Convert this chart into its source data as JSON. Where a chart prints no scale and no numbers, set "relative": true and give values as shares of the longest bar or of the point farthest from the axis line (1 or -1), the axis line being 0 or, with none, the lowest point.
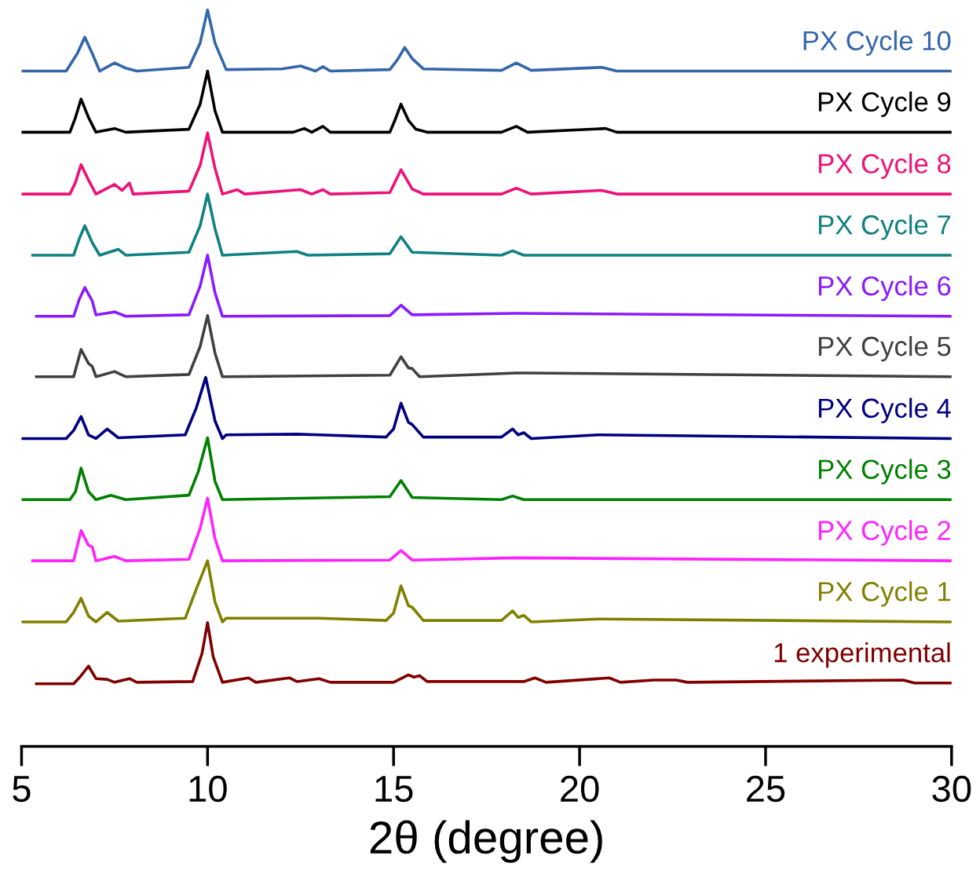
{
  "chart_data": {
    "type": "line",
    "relative": true,
    "xlabel": "2θ (degree)",
    "xlim": [
      5,
      30
    ],
    "xticks": [
      5,
      10,
      15,
      20,
      25,
      30
    ],
    "tick_labels": "x",
    "grid": false,
    "legend": false,
    "line_style": "solid",
    "marker": "none",
    "series": [
      {
        "name": "PX Cycle 10",
        "color": "#3366aa",
        "x": [
          5.0,
          6.2,
          6.5,
          6.7,
          6.9,
          7.1,
          7.5,
          7.8,
          8.1,
          9.5,
          9.8,
          10.0,
          10.2,
          10.5,
          12.0,
          12.5,
          12.9,
          13.1,
          13.3,
          14.9,
          15.1,
          15.3,
          15.5,
          15.8,
          17.9,
          18.3,
          18.7,
          20.6,
          21.0,
          30.0
        ],
        "values": [
          0.917,
          0.917,
          0.941,
          0.963,
          0.941,
          0.917,
          0.928,
          0.921,
          0.917,
          0.922,
          0.955,
          1.0,
          0.955,
          0.919,
          0.92,
          0.924,
          0.917,
          0.923,
          0.917,
          0.919,
          0.932,
          0.949,
          0.934,
          0.92,
          0.918,
          0.928,
          0.918,
          0.922,
          0.917,
          0.917
        ]
      },
      {
        "name": "PX Cycle 9",
        "color": "#000000",
        "x": [
          5.0,
          6.3,
          6.45,
          6.6,
          6.8,
          7.0,
          7.5,
          7.8,
          9.5,
          9.8,
          10.0,
          10.2,
          10.4,
          12.3,
          12.6,
          12.8,
          13.1,
          13.3,
          14.9,
          15.05,
          15.2,
          15.4,
          15.6,
          15.9,
          17.9,
          18.3,
          18.6,
          20.7,
          21.0,
          30.0
        ],
        "values": [
          0.834,
          0.834,
          0.854,
          0.879,
          0.854,
          0.834,
          0.839,
          0.834,
          0.838,
          0.872,
          0.917,
          0.863,
          0.834,
          0.834,
          0.839,
          0.834,
          0.842,
          0.834,
          0.834,
          0.852,
          0.872,
          0.85,
          0.838,
          0.834,
          0.834,
          0.842,
          0.834,
          0.839,
          0.834,
          0.834
        ]
      },
      {
        "name": "PX Cycle 8",
        "color": "#ee1177",
        "x": [
          5.0,
          6.3,
          6.45,
          6.6,
          6.8,
          7.0,
          7.5,
          7.7,
          7.9,
          8.0,
          9.5,
          9.8,
          10.0,
          10.2,
          10.4,
          10.8,
          11.0,
          12.5,
          12.8,
          13.1,
          13.3,
          14.9,
          15.2,
          15.5,
          15.8,
          17.9,
          18.3,
          18.7,
          20.6,
          21.0,
          30.0
        ],
        "values": [
          0.75,
          0.75,
          0.766,
          0.79,
          0.769,
          0.75,
          0.763,
          0.755,
          0.765,
          0.75,
          0.754,
          0.789,
          0.833,
          0.785,
          0.75,
          0.756,
          0.75,
          0.756,
          0.75,
          0.756,
          0.75,
          0.752,
          0.783,
          0.757,
          0.75,
          0.75,
          0.758,
          0.75,
          0.755,
          0.75,
          0.75
        ]
      },
      {
        "name": "PX Cycle 7",
        "color": "#118080",
        "x": [
          5.3,
          6.4,
          6.55,
          6.7,
          6.9,
          7.1,
          7.6,
          7.8,
          9.5,
          9.8,
          10.0,
          10.2,
          10.4,
          12.4,
          12.7,
          14.9,
          15.2,
          15.5,
          17.9,
          18.2,
          18.5,
          30.0
        ],
        "values": [
          0.667,
          0.667,
          0.689,
          0.707,
          0.684,
          0.667,
          0.675,
          0.667,
          0.671,
          0.707,
          0.75,
          0.703,
          0.667,
          0.672,
          0.667,
          0.669,
          0.692,
          0.671,
          0.667,
          0.673,
          0.667,
          0.667
        ]
      },
      {
        "name": "PX Cycle 6",
        "color": "#8a1aff",
        "x": [
          5.4,
          6.4,
          6.55,
          6.7,
          6.9,
          7.0,
          7.5,
          7.8,
          9.5,
          9.8,
          10.0,
          10.2,
          10.4,
          14.9,
          15.2,
          15.5,
          18.3,
          30.0
        ],
        "values": [
          0.584,
          0.584,
          0.607,
          0.623,
          0.605,
          0.586,
          0.59,
          0.584,
          0.586,
          0.625,
          0.667,
          0.616,
          0.584,
          0.585,
          0.599,
          0.586,
          0.588,
          0.584
        ]
      },
      {
        "name": "PX Cycle 5",
        "color": "#404040",
        "x": [
          5.4,
          6.4,
          6.6,
          6.8,
          6.9,
          7.0,
          7.5,
          7.8,
          9.5,
          9.8,
          10.0,
          10.2,
          10.4,
          14.9,
          15.2,
          15.4,
          15.5,
          15.7,
          18.3,
          18.6,
          30.0
        ],
        "values": [
          0.502,
          0.502,
          0.539,
          0.52,
          0.516,
          0.502,
          0.509,
          0.502,
          0.505,
          0.543,
          0.585,
          0.534,
          0.502,
          0.504,
          0.529,
          0.514,
          0.513,
          0.502,
          0.507,
          0.507,
          0.502
        ]
      },
      {
        "name": "PX Cycle 4",
        "color": "#000080",
        "x": [
          5.0,
          6.2,
          6.4,
          6.6,
          6.8,
          7.0,
          7.3,
          7.6,
          9.4,
          9.7,
          9.95,
          10.2,
          10.4,
          10.5,
          12.4,
          13.0,
          14.8,
          15.0,
          15.2,
          15.4,
          15.5,
          15.8,
          17.9,
          18.2,
          18.35,
          18.5,
          18.7,
          20.5,
          30.0
        ],
        "values": [
          0.418,
          0.418,
          0.429,
          0.448,
          0.423,
          0.418,
          0.431,
          0.419,
          0.423,
          0.46,
          0.501,
          0.442,
          0.418,
          0.423,
          0.424,
          0.423,
          0.42,
          0.431,
          0.466,
          0.44,
          0.437,
          0.42,
          0.42,
          0.431,
          0.423,
          0.426,
          0.418,
          0.423,
          0.418
        ]
      },
      {
        "name": "PX Cycle 3",
        "color": "#008000",
        "x": [
          5.0,
          6.3,
          6.45,
          6.6,
          6.8,
          7.0,
          7.4,
          7.8,
          9.5,
          9.75,
          10.0,
          10.2,
          10.4,
          14.9,
          15.2,
          15.5,
          17.9,
          18.2,
          18.5,
          30.0
        ],
        "values": [
          0.335,
          0.335,
          0.346,
          0.378,
          0.346,
          0.335,
          0.341,
          0.335,
          0.341,
          0.373,
          0.419,
          0.36,
          0.335,
          0.339,
          0.361,
          0.338,
          0.335,
          0.34,
          0.335,
          0.335
        ]
      },
      {
        "name": "PX Cycle 2",
        "color": "#ff22ff",
        "x": [
          5.3,
          6.4,
          6.6,
          6.8,
          6.9,
          7.0,
          7.5,
          7.8,
          9.5,
          9.8,
          10.0,
          10.2,
          10.4,
          14.9,
          15.2,
          15.5,
          18.3,
          30.0
        ],
        "values": [
          0.252,
          0.252,
          0.293,
          0.273,
          0.271,
          0.252,
          0.258,
          0.252,
          0.254,
          0.296,
          0.337,
          0.282,
          0.252,
          0.253,
          0.266,
          0.253,
          0.256,
          0.252
        ]
      },
      {
        "name": "PX Cycle 1",
        "color": "#808000",
        "x": [
          5.0,
          6.2,
          6.4,
          6.6,
          6.8,
          7.0,
          7.3,
          7.6,
          9.4,
          9.7,
          10.0,
          10.2,
          10.4,
          10.5,
          12.4,
          13.0,
          14.8,
          15.0,
          15.2,
          15.4,
          15.5,
          15.8,
          17.9,
          18.2,
          18.35,
          18.5,
          18.7,
          20.5,
          30.0
        ],
        "values": [
          0.169,
          0.169,
          0.182,
          0.201,
          0.177,
          0.169,
          0.182,
          0.17,
          0.174,
          0.214,
          0.252,
          0.196,
          0.169,
          0.174,
          0.174,
          0.174,
          0.171,
          0.181,
          0.218,
          0.191,
          0.189,
          0.171,
          0.171,
          0.184,
          0.175,
          0.178,
          0.169,
          0.173,
          0.169
        ]
      },
      {
        "name": "1 experimental",
        "color": "#800000",
        "x": [
          5.4,
          6.4,
          6.6,
          6.8,
          7.0,
          7.3,
          7.5,
          7.9,
          8.1,
          9.6,
          9.85,
          10.0,
          10.15,
          10.4,
          11.1,
          11.3,
          12.2,
          12.4,
          13.0,
          13.3,
          15.0,
          15.4,
          15.55,
          15.7,
          15.9,
          18.5,
          18.8,
          19.1,
          20.8,
          21.1,
          22.0,
          22.6,
          22.9,
          28.7,
          29.0,
          30.0
        ],
        "values": [
          0.085,
          0.085,
          0.096,
          0.109,
          0.092,
          0.091,
          0.087,
          0.092,
          0.087,
          0.088,
          0.126,
          0.168,
          0.122,
          0.087,
          0.093,
          0.087,
          0.093,
          0.088,
          0.092,
          0.087,
          0.087,
          0.097,
          0.094,
          0.096,
          0.088,
          0.088,
          0.093,
          0.087,
          0.093,
          0.087,
          0.09,
          0.09,
          0.087,
          0.09,
          0.086,
          0.086
        ]
      }
    ]
  }
}
